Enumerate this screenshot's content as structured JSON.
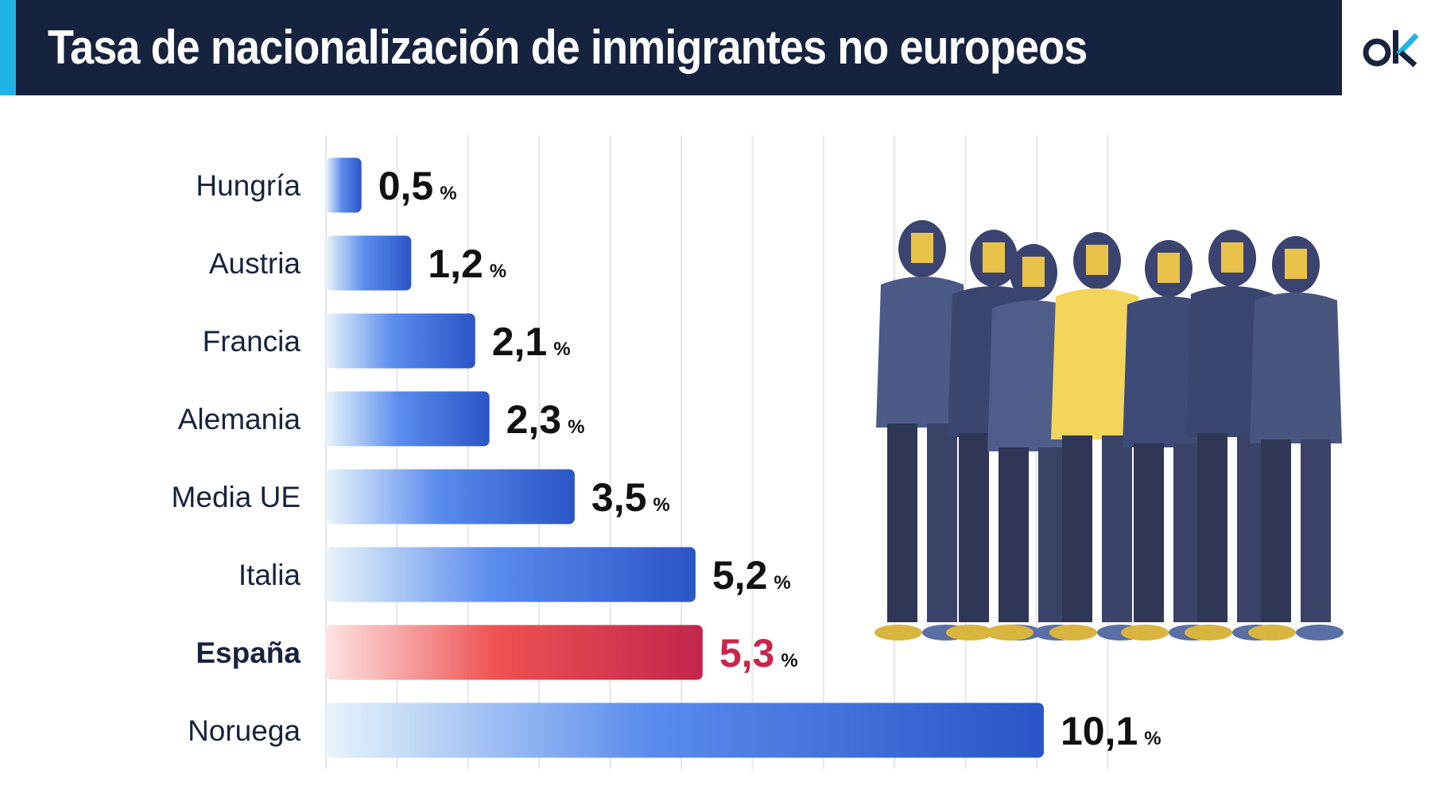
{
  "header": {
    "title": "Tasa de nacionalización de inmigrantes no europeos",
    "logo": "ok"
  },
  "colors": {
    "bar_start": "#e8f4fa",
    "bar_mid": "#5a8cee",
    "bar_end": "#2a55c6",
    "hl_start": "#fde3e3",
    "hl_mid": "#ee5252",
    "hl_end": "#c2264b",
    "hl_text": "#c8254b",
    "header_bg": "#16233f",
    "accent": "#1fb3e6"
  },
  "chart_data": {
    "type": "bar",
    "orientation": "horizontal",
    "title": "Tasa de nacionalización de inmigrantes no europeos",
    "categories": [
      "Hungría",
      "Austria",
      "Francia",
      "Alemania",
      "Media UE",
      "Italia",
      "España",
      "Noruega"
    ],
    "values": [
      0.5,
      1.2,
      2.1,
      2.3,
      3.5,
      5.2,
      5.3,
      10.1
    ],
    "value_labels": [
      "0,5",
      "1,2",
      "2,1",
      "2,3",
      "3,5",
      "5,2",
      "5,3",
      "10,1"
    ],
    "unit": "%",
    "highlight": "España",
    "xlim": [
      0,
      11
    ],
    "grid": true,
    "xlabel": "",
    "ylabel": ""
  }
}
